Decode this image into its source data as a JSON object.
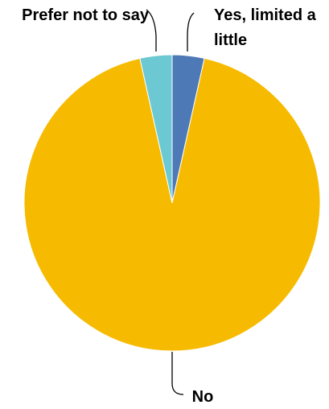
{
  "chart_data": {
    "type": "pie",
    "title": "",
    "slices": [
      {
        "label": "Yes, limited a little",
        "label_lines": [
          "Yes, limited a",
          "little"
        ],
        "value": 3.5,
        "color": "#4e79b7"
      },
      {
        "label": "No",
        "label_lines": [
          "No"
        ],
        "value": 93.0,
        "color": "#f6bb00"
      },
      {
        "label": "Prefer not to say",
        "label_lines": [
          "Prefer not to say"
        ],
        "value": 3.5,
        "color": "#6cc8d2"
      }
    ],
    "start_angle_deg": 0,
    "direction": "clockwise",
    "legend": "none"
  }
}
